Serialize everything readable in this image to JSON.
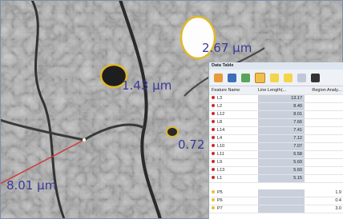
{
  "image": {
    "labels": [
      "2.67 µm",
      "1.43 µm",
      "0.72",
      "8.01 µm"
    ]
  },
  "panel": {
    "title": "Data Table",
    "columns": [
      "Feature Name",
      "Line Length(...",
      "Region Analy..."
    ],
    "rows": [
      {
        "name": "L3",
        "line_length": "13.17"
      },
      {
        "name": "L2",
        "line_length": "8.40"
      },
      {
        "name": "L12",
        "line_length": "8.01"
      },
      {
        "name": "L8",
        "line_length": "7.66"
      },
      {
        "name": "L14",
        "line_length": "7.41"
      },
      {
        "name": "L4",
        "line_length": "7.12"
      },
      {
        "name": "L10",
        "line_length": "7.07"
      },
      {
        "name": "L11",
        "line_length": "6.58"
      },
      {
        "name": "L9",
        "line_length": "5.69"
      },
      {
        "name": "L13",
        "line_length": "5.60"
      },
      {
        "name": "L1",
        "line_length": "5.15"
      },
      {
        "name": "P5",
        "region_area": "1.9"
      },
      {
        "name": "P6",
        "region_area": "0.4"
      },
      {
        "name": "P7",
        "region_area": "3.0"
      }
    ]
  }
}
